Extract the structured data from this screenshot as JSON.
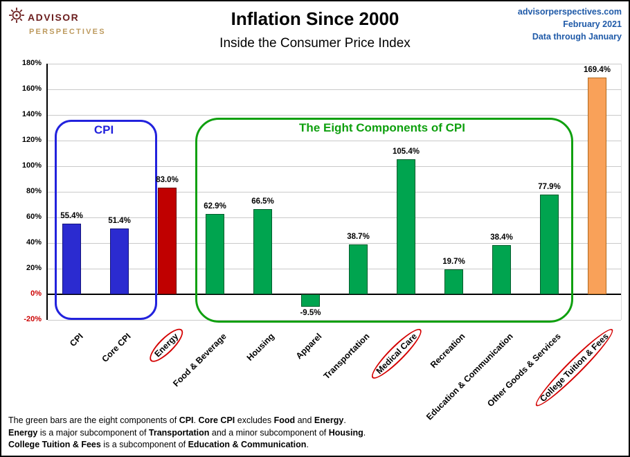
{
  "brand": {
    "line1": "ADVISOR",
    "line2": "PERSPECTIVES"
  },
  "header": {
    "title": "Inflation Since 2000",
    "subtitle": "Inside the Consumer Price Index",
    "source_site": "advisorperspectives.com",
    "source_date": "February 2021",
    "source_note": "Data through January"
  },
  "chart_data": {
    "type": "bar",
    "title": "Inflation Since 2000",
    "subtitle": "Inside the Consumer Price Index",
    "ylim": [
      -20,
      180
    ],
    "ytick_step": 20,
    "grid": true,
    "legend": "none",
    "ytick_values": [
      180,
      160,
      140,
      120,
      100,
      80,
      60,
      40,
      20,
      0,
      -20
    ],
    "ytick_labels": [
      "180%",
      "160%",
      "140%",
      "120%",
      "100%",
      "80%",
      "60%",
      "40%",
      "20%",
      "0%",
      "-20%"
    ],
    "categories": [
      "CPI",
      "Core CPI",
      "Energy",
      "Food & Beverage",
      "Housing",
      "Apparel",
      "Transportation",
      "Medical Care",
      "Recreation",
      "Education & Communication",
      "Other Goods & Services",
      "College Tuition & Fees"
    ],
    "values": [
      55.4,
      51.4,
      83.0,
      62.9,
      66.5,
      -9.5,
      38.7,
      105.4,
      19.7,
      38.4,
      77.9,
      169.4
    ],
    "value_labels": [
      "55.4%",
      "51.4%",
      "83.0%",
      "62.9%",
      "66.5%",
      "-9.5%",
      "38.7%",
      "105.4%",
      "19.7%",
      "38.4%",
      "77.9%",
      "169.4%"
    ],
    "bar_colors": [
      "#2b2bd0",
      "#2b2bd0",
      "#c00000",
      "#00a44f",
      "#00a44f",
      "#00a44f",
      "#00a44f",
      "#00a44f",
      "#00a44f",
      "#00a44f",
      "#00a44f",
      "#f9a159"
    ],
    "bar_edge_colors": [
      "#13137c",
      "#13137c",
      "#6b0000",
      "#005c2c",
      "#005c2c",
      "#005c2c",
      "#005c2c",
      "#005c2c",
      "#005c2c",
      "#005c2c",
      "#005c2c",
      "#b06a20"
    ],
    "negative_tick_color": "#cc0000",
    "circle_color": "#d40000",
    "circled_categories": [
      "Energy",
      "Medical Care",
      "College Tuition & Fees"
    ],
    "annotation_boxes": [
      {
        "name": "cpi-box",
        "label": "CPI",
        "color": "#2222dd",
        "x_start": 0.15,
        "x_end": 2.2,
        "top_value": 136,
        "bottom_value": -17,
        "radius": 24
      },
      {
        "name": "components-box",
        "label": "The Eight Components of CPI",
        "color": "#0fa00f",
        "x_start": 3.08,
        "x_end": 10.92,
        "top_value": 138,
        "bottom_value": -19,
        "radius": 34
      }
    ]
  },
  "footnotes": [
    {
      "segments": [
        {
          "t": "The green bars are the eight components of ",
          "b": false
        },
        {
          "t": "CPI",
          "b": true
        },
        {
          "t": ". ",
          "b": false
        },
        {
          "t": "Core CPI",
          "b": true
        },
        {
          "t": " excludes ",
          "b": false
        },
        {
          "t": "Food",
          "b": true
        },
        {
          "t": " and ",
          "b": false
        },
        {
          "t": "Energy",
          "b": true
        },
        {
          "t": ".",
          "b": false
        }
      ]
    },
    {
      "segments": [
        {
          "t": "Energy",
          "b": true
        },
        {
          "t": " is a major subcomponent of ",
          "b": false
        },
        {
          "t": "Transportation",
          "b": true
        },
        {
          "t": " and a minor subcomponent of ",
          "b": false
        },
        {
          "t": "Housing",
          "b": true
        },
        {
          "t": ".",
          "b": false
        }
      ]
    },
    {
      "segments": [
        {
          "t": "College Tuition & Fees",
          "b": true
        },
        {
          "t": " is a subcomponent of ",
          "b": false
        },
        {
          "t": "Education & Communication",
          "b": true
        },
        {
          "t": ".",
          "b": false
        }
      ]
    }
  ]
}
